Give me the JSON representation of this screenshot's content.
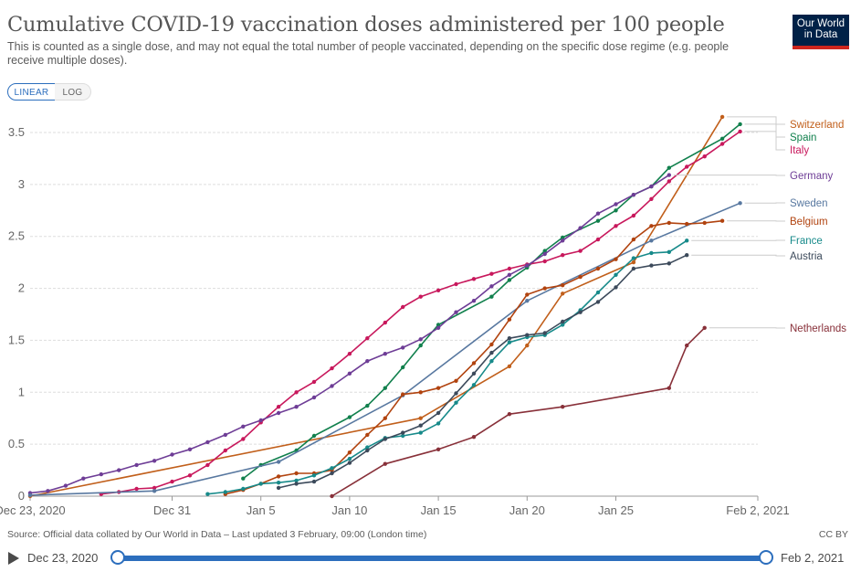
{
  "header": {
    "title": "Cumulative COVID-19 vaccination doses administered per 100 people",
    "subtitle": "This is counted as a single dose, and may not equal the total number of people vaccinated, depending on the specific dose regime (e.g. people receive multiple doses).",
    "logo_line1": "Our World",
    "logo_line2": "in Data"
  },
  "controls": {
    "linear_label": "LINEAR",
    "log_label": "LOG",
    "selected": "LINEAR"
  },
  "footer": {
    "source": "Source: Official data collated by Our World in Data – Last updated 3 February, 09:00 (London time)",
    "license": "CC BY"
  },
  "timeline": {
    "start_label": "Dec 23, 2020",
    "end_label": "Feb 2, 2021"
  },
  "colors": {
    "accent": "#2c6ebd",
    "grid": "#dddddd",
    "axis_text": "#666666"
  },
  "chart_data": {
    "type": "line",
    "title": "Cumulative COVID-19 vaccination doses administered per 100 people",
    "xlabel": "",
    "ylabel": "",
    "x_unit": "days since Dec 23, 2020",
    "xlim": [
      0,
      41
    ],
    "ylim": [
      0,
      3.7
    ],
    "y_ticks": [
      0,
      0.5,
      1,
      1.5,
      2,
      2.5,
      3,
      3.5
    ],
    "x_ticks": [
      {
        "x": 0,
        "label": "Dec 23, 2020"
      },
      {
        "x": 8,
        "label": "Dec 31"
      },
      {
        "x": 13,
        "label": "Jan 5"
      },
      {
        "x": 18,
        "label": "Jan 10"
      },
      {
        "x": 23,
        "label": "Jan 15"
      },
      {
        "x": 28,
        "label": "Jan 20"
      },
      {
        "x": 33,
        "label": "Jan 25"
      },
      {
        "x": 41,
        "label": "Feb 2, 2021"
      }
    ],
    "grid": true,
    "legend": "end-of-line labels, right",
    "series": [
      {
        "name": "Switzerland",
        "color": "#c15f1b",
        "points": [
          [
            0,
            0
          ],
          [
            22,
            0.75
          ],
          [
            27,
            1.25
          ],
          [
            28,
            1.45
          ],
          [
            30,
            1.95
          ],
          [
            34,
            2.25
          ],
          [
            39,
            3.65
          ]
        ]
      },
      {
        "name": "Spain",
        "color": "#11804d",
        "points": [
          [
            12,
            0.17
          ],
          [
            13,
            0.3
          ],
          [
            15,
            0.44
          ],
          [
            16,
            0.58
          ],
          [
            18,
            0.76
          ],
          [
            19,
            0.87
          ],
          [
            20,
            1.04
          ],
          [
            21,
            1.24
          ],
          [
            22,
            1.45
          ],
          [
            23,
            1.65
          ],
          [
            26,
            1.92
          ],
          [
            27,
            2.08
          ],
          [
            28,
            2.2
          ],
          [
            29,
            2.36
          ],
          [
            30,
            2.49
          ],
          [
            32,
            2.65
          ],
          [
            33,
            2.75
          ],
          [
            34,
            2.9
          ],
          [
            35,
            2.98
          ],
          [
            36,
            3.16
          ],
          [
            39,
            3.44
          ],
          [
            40,
            3.58
          ]
        ]
      },
      {
        "name": "Italy",
        "color": "#c8185c",
        "points": [
          [
            4,
            0.02
          ],
          [
            5,
            0.04
          ],
          [
            6,
            0.07
          ],
          [
            7,
            0.08
          ],
          [
            8,
            0.14
          ],
          [
            9,
            0.2
          ],
          [
            10,
            0.3
          ],
          [
            11,
            0.44
          ],
          [
            12,
            0.55
          ],
          [
            13,
            0.71
          ],
          [
            14,
            0.86
          ],
          [
            15,
            1.0
          ],
          [
            16,
            1.1
          ],
          [
            17,
            1.23
          ],
          [
            18,
            1.37
          ],
          [
            19,
            1.52
          ],
          [
            20,
            1.67
          ],
          [
            21,
            1.82
          ],
          [
            22,
            1.92
          ],
          [
            23,
            1.98
          ],
          [
            24,
            2.04
          ],
          [
            25,
            2.09
          ],
          [
            26,
            2.14
          ],
          [
            27,
            2.19
          ],
          [
            28,
            2.23
          ],
          [
            29,
            2.26
          ],
          [
            30,
            2.32
          ],
          [
            31,
            2.36
          ],
          [
            32,
            2.47
          ],
          [
            33,
            2.6
          ],
          [
            34,
            2.7
          ],
          [
            35,
            2.86
          ],
          [
            36,
            3.03
          ],
          [
            37,
            3.17
          ],
          [
            38,
            3.27
          ],
          [
            39,
            3.39
          ],
          [
            40,
            3.51
          ]
        ]
      },
      {
        "name": "Germany",
        "color": "#6e3d96",
        "points": [
          [
            0,
            0.03
          ],
          [
            1,
            0.05
          ],
          [
            2,
            0.1
          ],
          [
            3,
            0.17
          ],
          [
            4,
            0.21
          ],
          [
            5,
            0.25
          ],
          [
            6,
            0.3
          ],
          [
            7,
            0.34
          ],
          [
            8,
            0.4
          ],
          [
            9,
            0.45
          ],
          [
            10,
            0.52
          ],
          [
            11,
            0.59
          ],
          [
            12,
            0.67
          ],
          [
            13,
            0.73
          ],
          [
            14,
            0.8
          ],
          [
            15,
            0.86
          ],
          [
            16,
            0.95
          ],
          [
            17,
            1.06
          ],
          [
            18,
            1.18
          ],
          [
            19,
            1.3
          ],
          [
            20,
            1.37
          ],
          [
            21,
            1.43
          ],
          [
            22,
            1.51
          ],
          [
            23,
            1.62
          ],
          [
            24,
            1.77
          ],
          [
            25,
            1.88
          ],
          [
            26,
            2.02
          ],
          [
            27,
            2.13
          ],
          [
            28,
            2.22
          ],
          [
            29,
            2.33
          ],
          [
            30,
            2.46
          ],
          [
            31,
            2.58
          ],
          [
            32,
            2.72
          ],
          [
            33,
            2.81
          ],
          [
            34,
            2.9
          ],
          [
            35,
            2.98
          ],
          [
            36,
            3.09
          ]
        ]
      },
      {
        "name": "Sweden",
        "color": "#5878a0",
        "points": [
          [
            0,
            0.01
          ],
          [
            7,
            0.05
          ],
          [
            14,
            0.33
          ],
          [
            21,
            0.97
          ],
          [
            28,
            1.88
          ],
          [
            35,
            2.46
          ],
          [
            40,
            2.82
          ]
        ]
      },
      {
        "name": "Belgium",
        "color": "#b1430f",
        "points": [
          [
            11,
            0.02
          ],
          [
            12,
            0.06
          ],
          [
            13,
            0.12
          ],
          [
            14,
            0.19
          ],
          [
            15,
            0.22
          ],
          [
            16,
            0.22
          ],
          [
            17,
            0.25
          ],
          [
            18,
            0.42
          ],
          [
            19,
            0.59
          ],
          [
            20,
            0.75
          ],
          [
            21,
            0.98
          ],
          [
            22,
            1.0
          ],
          [
            23,
            1.04
          ],
          [
            24,
            1.11
          ],
          [
            25,
            1.28
          ],
          [
            26,
            1.46
          ],
          [
            27,
            1.7
          ],
          [
            28,
            1.94
          ],
          [
            29,
            2.0
          ],
          [
            30,
            2.03
          ],
          [
            31,
            2.11
          ],
          [
            32,
            2.19
          ],
          [
            33,
            2.28
          ],
          [
            34,
            2.47
          ],
          [
            35,
            2.6
          ],
          [
            36,
            2.63
          ],
          [
            37,
            2.62
          ],
          [
            38,
            2.63
          ],
          [
            39,
            2.65
          ]
        ]
      },
      {
        "name": "France",
        "color": "#178a8a",
        "points": [
          [
            10,
            0.02
          ],
          [
            11,
            0.04
          ],
          [
            12,
            0.07
          ],
          [
            13,
            0.12
          ],
          [
            14,
            0.13
          ],
          [
            15,
            0.15
          ],
          [
            16,
            0.2
          ],
          [
            17,
            0.27
          ],
          [
            18,
            0.36
          ],
          [
            19,
            0.47
          ],
          [
            20,
            0.56
          ],
          [
            21,
            0.58
          ],
          [
            22,
            0.61
          ],
          [
            23,
            0.7
          ],
          [
            24,
            0.9
          ],
          [
            25,
            1.07
          ],
          [
            26,
            1.3
          ],
          [
            27,
            1.48
          ],
          [
            28,
            1.53
          ],
          [
            29,
            1.55
          ],
          [
            30,
            1.65
          ],
          [
            31,
            1.79
          ],
          [
            32,
            1.96
          ],
          [
            33,
            2.13
          ],
          [
            34,
            2.29
          ],
          [
            35,
            2.34
          ],
          [
            36,
            2.35
          ],
          [
            37,
            2.46
          ]
        ]
      },
      {
        "name": "Austria",
        "color": "#3c4a5b",
        "points": [
          [
            14,
            0.08
          ],
          [
            15,
            0.12
          ],
          [
            16,
            0.14
          ],
          [
            17,
            0.22
          ],
          [
            18,
            0.32
          ],
          [
            19,
            0.44
          ],
          [
            20,
            0.55
          ],
          [
            21,
            0.61
          ],
          [
            22,
            0.68
          ],
          [
            23,
            0.8
          ],
          [
            24,
            0.99
          ],
          [
            25,
            1.18
          ],
          [
            26,
            1.38
          ],
          [
            27,
            1.52
          ],
          [
            28,
            1.55
          ],
          [
            29,
            1.57
          ],
          [
            30,
            1.68
          ],
          [
            31,
            1.77
          ],
          [
            32,
            1.87
          ],
          [
            33,
            2.01
          ],
          [
            34,
            2.19
          ],
          [
            35,
            2.22
          ],
          [
            36,
            2.24
          ],
          [
            37,
            2.32
          ]
        ]
      },
      {
        "name": "Netherlands",
        "color": "#883039",
        "points": [
          [
            17,
            0.0
          ],
          [
            20,
            0.31
          ],
          [
            23,
            0.45
          ],
          [
            25,
            0.57
          ],
          [
            27,
            0.79
          ],
          [
            30,
            0.86
          ],
          [
            36,
            1.04
          ],
          [
            37,
            1.45
          ],
          [
            38,
            1.62
          ]
        ]
      }
    ],
    "label_order": [
      "Switzerland",
      "Spain",
      "Italy",
      "Germany",
      "Sweden",
      "Belgium",
      "France",
      "Austria",
      "Netherlands"
    ]
  }
}
